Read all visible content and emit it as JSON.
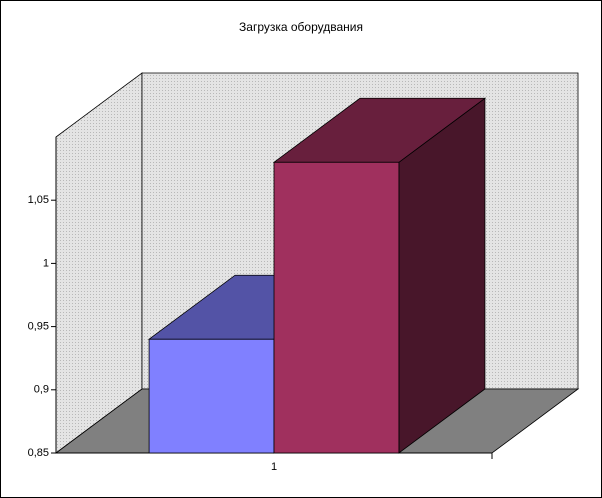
{
  "chart_data": {
    "type": "bar3d",
    "title": "Загрузка оборудвания",
    "categories": [
      "1"
    ],
    "series": [
      {
        "color": "#8080ff",
        "values": [
          0.94
        ]
      },
      {
        "color": "#a0305e",
        "values": [
          1.08
        ]
      }
    ],
    "ylim": [
      0.85,
      1.1
    ],
    "yticks": [
      {
        "value": 0.85,
        "label": "0,85"
      },
      {
        "value": 0.9,
        "label": "0,9"
      },
      {
        "value": 0.95,
        "label": "0,95"
      },
      1,
      {
        "value": 1.05,
        "label": "1,05"
      }
    ]
  }
}
